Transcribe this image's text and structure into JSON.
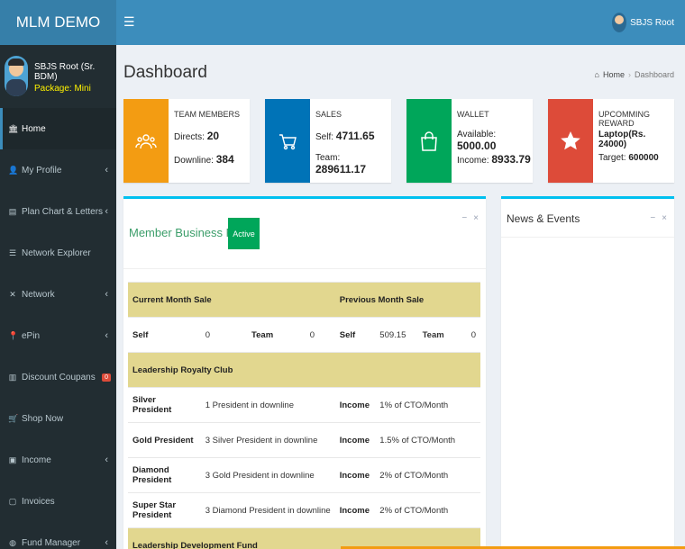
{
  "app": {
    "logo": "MLM DEMO",
    "header_user": "SBJS Root"
  },
  "user": {
    "name": "SBJS Root (Sr. BDM)",
    "package": "Package: Mini"
  },
  "sidebar": {
    "items": [
      {
        "label": "Home",
        "icon": "bank-icon",
        "glyph": "🏛"
      },
      {
        "label": "My Profile",
        "icon": "user-icon",
        "glyph": "👤"
      },
      {
        "label": "Plan Chart & Letters",
        "icon": "file-icon",
        "glyph": "▤"
      },
      {
        "label": "Network Explorer",
        "icon": "list-icon",
        "glyph": "☰"
      },
      {
        "label": "Network",
        "icon": "shuffle-icon",
        "glyph": "✕"
      },
      {
        "label": "ePin",
        "icon": "pin-icon",
        "glyph": "📍"
      },
      {
        "label": "Discount Coupans",
        "icon": "book-icon",
        "glyph": "▥",
        "badge": "0"
      },
      {
        "label": "Shop Now",
        "icon": "cart-icon",
        "glyph": "🛒"
      },
      {
        "label": "Income",
        "icon": "money-icon",
        "glyph": "▣"
      },
      {
        "label": "Invoices",
        "icon": "document-icon",
        "glyph": "▢"
      },
      {
        "label": "Fund Manager",
        "icon": "piggy-icon",
        "glyph": "◍"
      }
    ]
  },
  "page": {
    "title": "Dashboard",
    "breadcrumb": [
      "Home",
      "Dashboard"
    ]
  },
  "info_boxes": [
    {
      "label": "TEAM MEMBERS",
      "line1_label": "Directs:",
      "line1_value": "20",
      "line2_label": "Downline:",
      "line2_value": "384",
      "color": "#f39c12",
      "icon": "users-icon"
    },
    {
      "label": "SALES",
      "line1_label": "Self:",
      "line1_value": "4711.65",
      "line2_label": "Team:",
      "line2_value": "289611.17",
      "color": "#0073b7",
      "icon": "cart-icon"
    },
    {
      "label": "WALLET",
      "line1_label": "Available:",
      "line1_value": "5000.00",
      "line2_label": "Income:",
      "line2_value": "8933.79",
      "color": "#00a65a",
      "icon": "shopping-bag-icon"
    },
    {
      "label": "UPCOMMING REWARD",
      "line1_label": "Laptop(Rs. 24000)",
      "line1_value": "",
      "line2_label": "Target:",
      "line2_value": "600000",
      "color": "#dd4b39",
      "icon": "star-icon"
    }
  ],
  "member_profile": {
    "title": "Member Business Profile",
    "status": "Active",
    "current_month_sale": "Current Month Sale",
    "previous_month_sale": "Previous Month Sale",
    "self_label": "Self",
    "team_label": "Team",
    "current_self": "0",
    "current_team": "0",
    "previous_self": "509.15",
    "previous_team": "0",
    "royalty_club": "Leadership Royalty Club",
    "income_label": "Income",
    "rows": [
      {
        "rank": "Silver President",
        "requirement": "1 President in downline",
        "income": "1% of CTO/Month"
      },
      {
        "rank": "Gold President",
        "requirement": "3 Silver President in downline",
        "income": "1.5% of CTO/Month"
      },
      {
        "rank": "Diamond President",
        "requirement": "3 Gold President in downline",
        "income": "2% of CTO/Month"
      },
      {
        "rank": "Super Star President",
        "requirement": "3 Diamond President in downline",
        "income": "2% of CTO/Month"
      }
    ],
    "development_fund": "Leadership Development Fund"
  },
  "news": {
    "title": "News & Events"
  },
  "tools": {
    "minimize": "−",
    "close": "×"
  }
}
